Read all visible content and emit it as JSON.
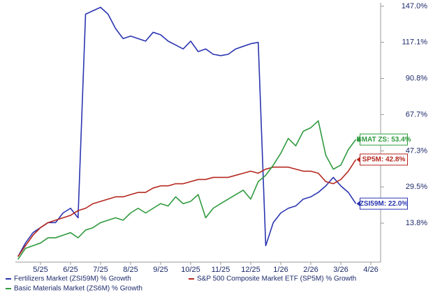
{
  "chart_data": {
    "type": "line",
    "categories": [
      null,
      null,
      null,
      "5/25",
      null,
      null,
      null,
      "6/25",
      null,
      null,
      null,
      "7/25",
      null,
      null,
      null,
      "8/25",
      null,
      null,
      null,
      "9/25",
      null,
      null,
      null,
      "10/25",
      null,
      null,
      null,
      "11/25",
      null,
      null,
      null,
      "12/25",
      null,
      null,
      null,
      "1/26",
      null,
      null,
      null,
      "2/26",
      null,
      null,
      null,
      "3/26",
      null,
      null,
      null,
      "4/26",
      null
    ],
    "series": [
      {
        "name": "Fertilizers Market (ZSI59M) % Growth",
        "color": "#2a35b0",
        "values": [
          1,
          6,
          10,
          12,
          14,
          14,
          18,
          20,
          16,
          140,
          143,
          146,
          140,
          128,
          120,
          122,
          120,
          118,
          125,
          123,
          118,
          115,
          112,
          118,
          110,
          112,
          108,
          107,
          108,
          112,
          114,
          116,
          117,
          5,
          14,
          18,
          20,
          21,
          24,
          25,
          27,
          30,
          34,
          30,
          27,
          22.0,
          null,
          null,
          null
        ],
        "value_labels": [
          null,
          null,
          null,
          null,
          null,
          null,
          null,
          null,
          null,
          null,
          null,
          null,
          null,
          null,
          null,
          null,
          null,
          null,
          null,
          null,
          null,
          null,
          null,
          null,
          null,
          null,
          null,
          null,
          null,
          null,
          null,
          null,
          null,
          null,
          null,
          null,
          null,
          null,
          null,
          null,
          null,
          null,
          null,
          null,
          null,
          "ZSI59M: 22.0%",
          null,
          null,
          null
        ]
      },
      {
        "name": "S&P 500 Composite Market ETF (SP5M) % Growth",
        "color": "#b5271f",
        "values": [
          1,
          5,
          9,
          12,
          14,
          15,
          16,
          17,
          19,
          20,
          22,
          23,
          24,
          25,
          25,
          26,
          27,
          27,
          29,
          30,
          30,
          31,
          31,
          32,
          33,
          33,
          34,
          34,
          34,
          35,
          36,
          37,
          36,
          38,
          39,
          39,
          39,
          38,
          37,
          37,
          36,
          32,
          31,
          33,
          37,
          42.8,
          null,
          null,
          null
        ],
        "value_labels": [
          null,
          null,
          null,
          null,
          null,
          null,
          null,
          null,
          null,
          null,
          null,
          null,
          null,
          null,
          null,
          null,
          null,
          null,
          null,
          null,
          null,
          null,
          null,
          null,
          null,
          null,
          null,
          null,
          null,
          null,
          null,
          null,
          null,
          null,
          null,
          null,
          null,
          null,
          null,
          null,
          null,
          null,
          null,
          null,
          null,
          "SP5M: 42.8%",
          null,
          null,
          null
        ]
      },
      {
        "name": "Basic Materials Market (ZS6M) % Growth",
        "color": "#2f9a3e",
        "values": [
          0,
          4,
          5,
          6,
          8,
          8,
          9,
          10,
          8,
          11,
          12,
          14,
          15,
          16,
          15,
          18,
          20,
          18,
          20,
          22,
          21,
          25,
          22,
          23,
          26,
          16,
          20,
          22,
          24,
          26,
          28,
          24,
          32,
          35,
          40,
          46,
          54,
          50,
          58,
          60,
          64,
          45,
          38,
          40,
          48,
          53.4,
          null,
          null,
          null
        ],
        "value_labels": [
          null,
          null,
          null,
          null,
          null,
          null,
          null,
          null,
          null,
          null,
          null,
          null,
          null,
          null,
          null,
          null,
          null,
          null,
          null,
          null,
          null,
          null,
          null,
          null,
          null,
          null,
          null,
          null,
          null,
          null,
          null,
          null,
          null,
          null,
          null,
          null,
          null,
          null,
          null,
          null,
          null,
          null,
          null,
          null,
          null,
          "BMAT ZS: 53.4%",
          null,
          null,
          null
        ]
      }
    ],
    "yscale": "log-growth",
    "ylim": [
      -1,
      150
    ],
    "yticks": [
      {
        "value": 13.8,
        "label": "13.8%"
      },
      {
        "value": 29.5,
        "label": "29.5%"
      },
      {
        "value": 47.3,
        "label": "47.3%"
      },
      {
        "value": 67.7,
        "label": "67.7%"
      },
      {
        "value": 90.8,
        "label": "90.8%"
      },
      {
        "value": 117.1,
        "label": "117.1%"
      },
      {
        "value": 147.0,
        "label": "147.0%"
      }
    ]
  }
}
